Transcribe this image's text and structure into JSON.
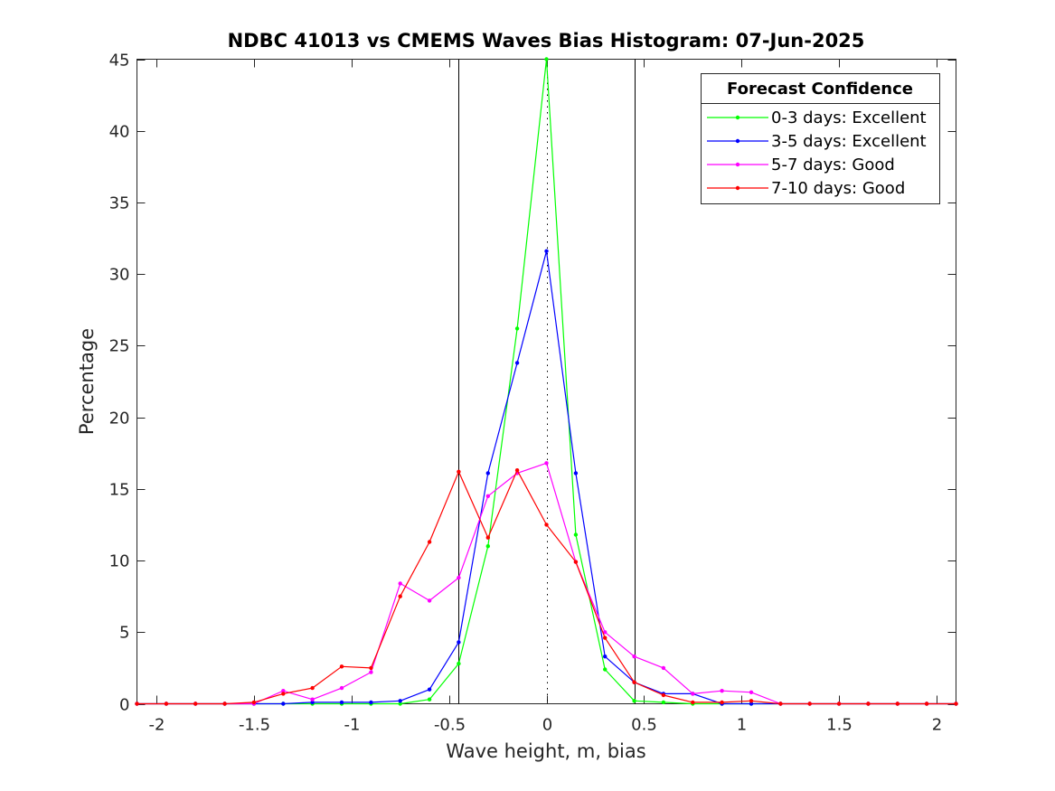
{
  "chart_data": {
    "type": "line",
    "title": "NDBC 41013 vs CMEMS Waves Bias Histogram: 07-Jun-2025",
    "xlabel": "Wave height, m, bias",
    "ylabel": "Percentage",
    "xlim": [
      -2.1,
      2.1
    ],
    "ylim": [
      0,
      45
    ],
    "xticks": [
      -2,
      -1.5,
      -1,
      -0.5,
      0,
      0.5,
      1,
      1.5,
      2
    ],
    "xtick_labels": [
      "-2",
      "-1.5",
      "-1",
      "-0.5",
      "0",
      "0.5",
      "1",
      "1.5",
      "2"
    ],
    "yticks": [
      0,
      5,
      10,
      15,
      20,
      25,
      30,
      35,
      40,
      45
    ],
    "ytick_labels": [
      "0",
      "5",
      "10",
      "15",
      "20",
      "25",
      "30",
      "35",
      "40",
      "45"
    ],
    "grid": false,
    "reference_lines": {
      "solid_vertical_x": [
        -0.45,
        0.45
      ],
      "dotted_vertical_x": [
        0
      ]
    },
    "legend": {
      "title": "Forecast Confidence",
      "placement": "top-right"
    },
    "x": [
      -2.1,
      -1.95,
      -1.8,
      -1.65,
      -1.5,
      -1.35,
      -1.2,
      -1.05,
      -0.9,
      -0.75,
      -0.6,
      -0.45,
      -0.3,
      -0.15,
      0,
      0.15,
      0.3,
      0.45,
      0.6,
      0.75,
      0.9,
      1.05,
      1.2,
      1.35,
      1.5,
      1.65,
      1.8,
      1.95,
      2.1
    ],
    "series": [
      {
        "name": "0-3 days: Excellent",
        "color": "#00ff00",
        "values": [
          0,
          0,
          0,
          0,
          0,
          0,
          0,
          0,
          0,
          0,
          0.3,
          2.8,
          11,
          26.2,
          45,
          11.8,
          2.4,
          0.2,
          0.1,
          0,
          0,
          0,
          0,
          0,
          0,
          0,
          0,
          0,
          0
        ]
      },
      {
        "name": "3-5 days: Excellent",
        "color": "#0000ff",
        "values": [
          0,
          0,
          0,
          0,
          0,
          0,
          0.1,
          0.1,
          0.1,
          0.2,
          1,
          4.3,
          16.1,
          23.8,
          31.6,
          16.1,
          3.3,
          1.5,
          0.7,
          0.7,
          0,
          0,
          0,
          0,
          0,
          0,
          0,
          0,
          0
        ]
      },
      {
        "name": "5-7 days: Good",
        "color": "#ff00ff",
        "values": [
          0,
          0,
          0,
          0,
          0,
          0.9,
          0.3,
          1.1,
          2.2,
          8.4,
          7.2,
          8.8,
          14.5,
          16.1,
          16.8,
          9.9,
          5,
          3.3,
          2.5,
          0.7,
          0.9,
          0.8,
          0,
          0,
          0,
          0,
          0,
          0,
          0
        ]
      },
      {
        "name": "7-10 days: Good",
        "color": "#ff0000",
        "values": [
          0,
          0,
          0,
          0,
          0.1,
          0.7,
          1.1,
          2.6,
          2.5,
          7.5,
          11.3,
          16.2,
          11.6,
          16.3,
          12.5,
          9.9,
          4.6,
          1.5,
          0.6,
          0.1,
          0.1,
          0.2,
          0,
          0,
          0,
          0,
          0,
          0,
          0
        ]
      }
    ]
  }
}
